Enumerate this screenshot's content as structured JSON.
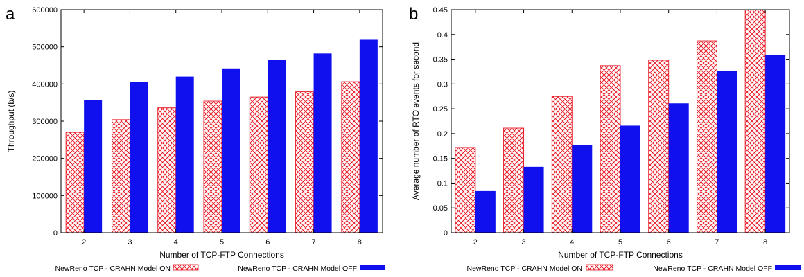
{
  "colors": {
    "on_series": "#e8121e",
    "off_series": "#1010ee",
    "axis": "#000000"
  },
  "chart_data": [
    {
      "type": "bar",
      "panel_label": "a",
      "categories": [
        "2",
        "3",
        "4",
        "5",
        "6",
        "7",
        "8"
      ],
      "series": [
        {
          "name": "NewReno TCP - CRAHN Model ON",
          "values": [
            270000,
            304000,
            336000,
            354000,
            365000,
            379000,
            406000
          ],
          "fill": "crosshatch"
        },
        {
          "name": "NewReno TCP - CRAHN Model OFF",
          "values": [
            356000,
            405000,
            420000,
            442000,
            465000,
            482000,
            519000
          ],
          "fill": "solid"
        }
      ],
      "xlabel": "Number of TCP-FTP Connections",
      "ylabel": "Throughput (b/s)",
      "ylim": [
        0,
        600000
      ],
      "yticks": [
        "0",
        "100000",
        "200000",
        "300000",
        "400000",
        "500000",
        "600000"
      ],
      "legend": "bottom"
    },
    {
      "type": "bar",
      "panel_label": "b",
      "categories": [
        "2",
        "3",
        "4",
        "5",
        "6",
        "7",
        "8"
      ],
      "series": [
        {
          "name": "NewReno TCP - CRAHN Model ON",
          "values": [
            0.172,
            0.211,
            0.275,
            0.337,
            0.348,
            0.387,
            0.45
          ],
          "fill": "crosshatch"
        },
        {
          "name": "NewReno TCP - CRAHN Model OFF",
          "values": [
            0.084,
            0.133,
            0.177,
            0.216,
            0.261,
            0.327,
            0.359
          ],
          "fill": "solid"
        }
      ],
      "xlabel": "Number of TCP-FTP Connections",
      "ylabel": "Average number of RTO events for second",
      "ylim": [
        0,
        0.45
      ],
      "yticks": [
        "0",
        "0.05",
        "0.1",
        "0.15",
        "0.2",
        "0.25",
        "0.3",
        "0.35",
        "0.4",
        "0.45"
      ],
      "legend": "bottom"
    }
  ]
}
